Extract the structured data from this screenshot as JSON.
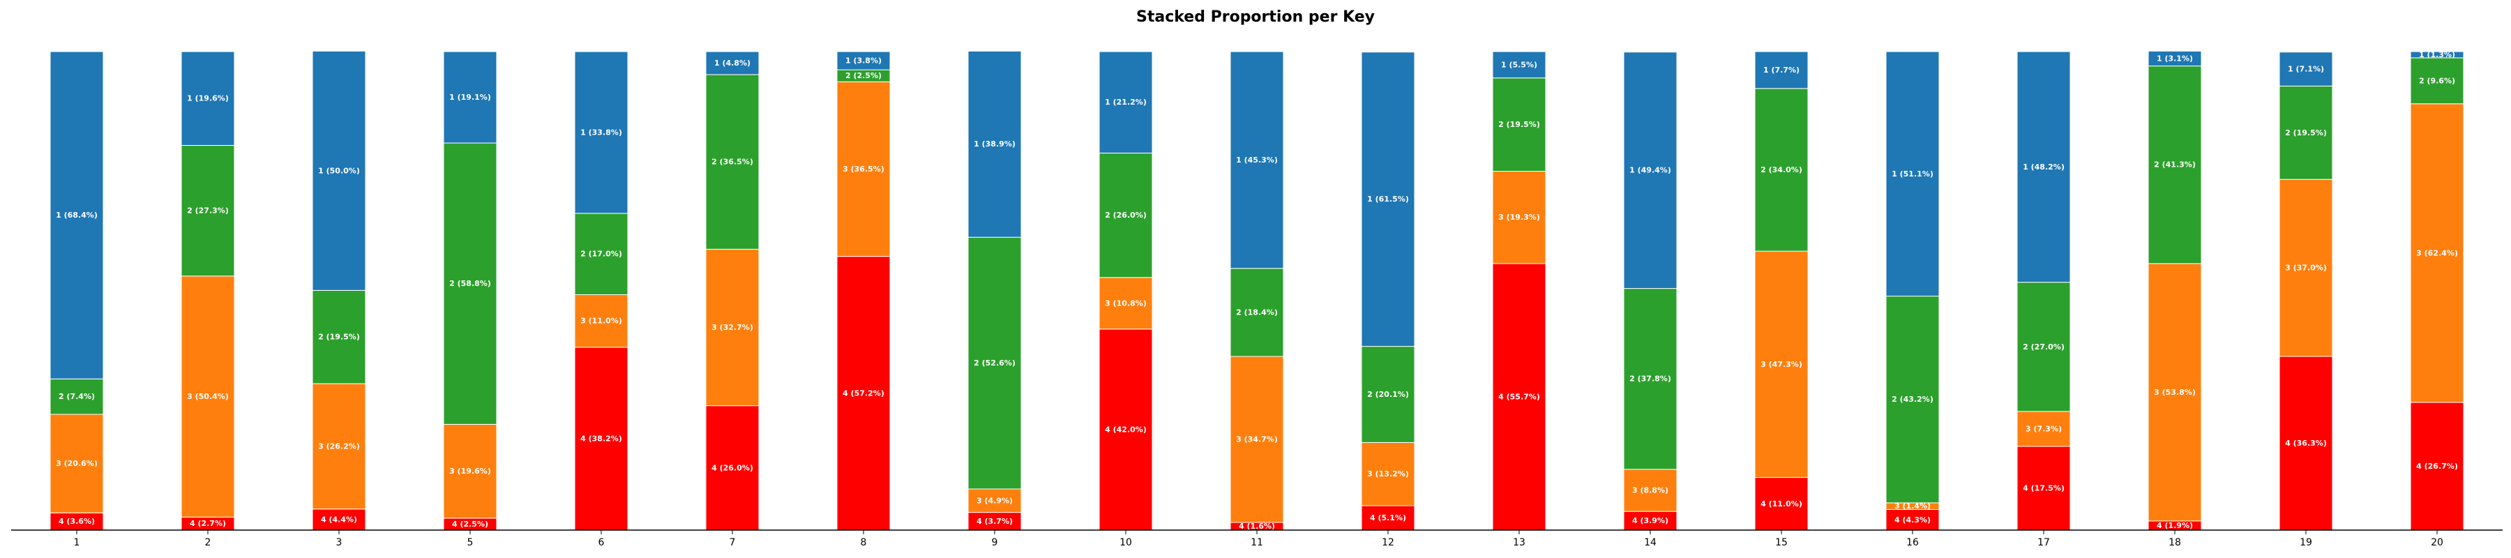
{
  "chart_data": {
    "type": "bar",
    "stacked": true,
    "title": "Stacked Proportion per Key",
    "xlabel": "",
    "ylabel": "",
    "ylim": [
      0,
      100
    ],
    "grid": false,
    "categories": [
      "1",
      "2",
      "3",
      "5",
      "6",
      "7",
      "8",
      "9",
      "10",
      "11",
      "12",
      "13",
      "14",
      "15",
      "16",
      "17",
      "18",
      "19",
      "20"
    ],
    "series": [
      {
        "name": "4",
        "color": "#ff0000",
        "values": [
          3.6,
          2.7,
          4.4,
          2.5,
          38.2,
          26.0,
          57.2,
          3.7,
          42.0,
          1.6,
          5.1,
          55.7,
          3.9,
          11.0,
          4.3,
          17.5,
          1.9,
          36.3,
          26.7
        ]
      },
      {
        "name": "3",
        "color": "#ff7f0e",
        "values": [
          20.6,
          50.4,
          26.2,
          19.6,
          11.0,
          32.7,
          36.5,
          4.9,
          10.8,
          34.7,
          13.2,
          19.3,
          8.8,
          47.3,
          1.4,
          7.3,
          53.8,
          37.0,
          62.4
        ]
      },
      {
        "name": "2",
        "color": "#2ca02c",
        "values": [
          7.4,
          27.3,
          19.5,
          58.8,
          17.0,
          36.5,
          2.5,
          52.6,
          26.0,
          18.4,
          20.1,
          19.5,
          37.8,
          34.0,
          43.2,
          27.0,
          41.3,
          19.5,
          9.6
        ]
      },
      {
        "name": "1",
        "color": "#1f77b4",
        "values": [
          68.4,
          19.6,
          50.0,
          19.1,
          33.8,
          4.8,
          3.8,
          38.9,
          21.2,
          45.3,
          61.5,
          5.5,
          49.4,
          7.7,
          51.1,
          48.2,
          3.1,
          7.1,
          1.3
        ]
      }
    ]
  }
}
